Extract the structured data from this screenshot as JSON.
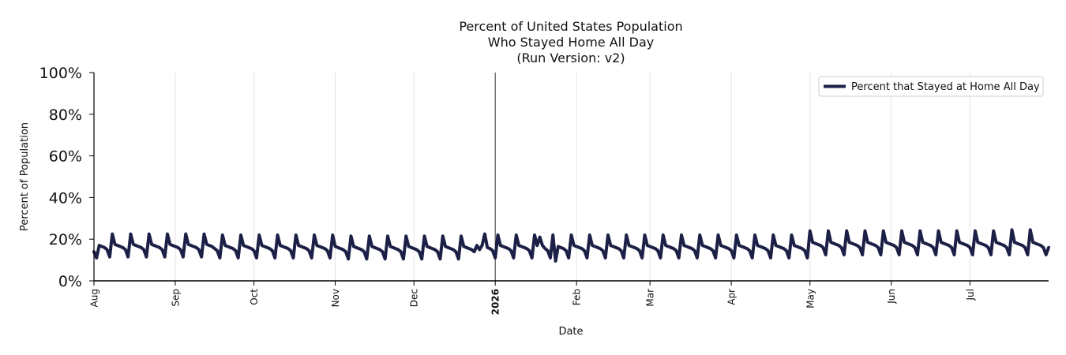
{
  "chart_data": {
    "type": "line",
    "title_lines": [
      "Percent of United States Population",
      "Who Stayed Home All Day",
      "(Run Version: v2)"
    ],
    "xlabel": "Date",
    "ylabel": "Percent of Population",
    "ylim": [
      0,
      100
    ],
    "yticks": [
      "0%",
      "20%",
      "40%",
      "60%",
      "80%",
      "100%"
    ],
    "xlim": [
      "2025-08-01",
      "2026-07-31"
    ],
    "xticks": [
      {
        "date": "2025-08-01",
        "label": "Aug",
        "bold": false
      },
      {
        "date": "2025-09-01",
        "label": "Sep",
        "bold": false
      },
      {
        "date": "2025-10-01",
        "label": "Oct",
        "bold": false
      },
      {
        "date": "2025-11-01",
        "label": "Nov",
        "bold": false
      },
      {
        "date": "2025-12-01",
        "label": "Dec",
        "bold": false
      },
      {
        "date": "2026-01-01",
        "label": "2026",
        "bold": true
      },
      {
        "date": "2026-02-01",
        "label": "Feb",
        "bold": false
      },
      {
        "date": "2026-03-01",
        "label": "Mar",
        "bold": false
      },
      {
        "date": "2026-04-01",
        "label": "Apr",
        "bold": false
      },
      {
        "date": "2026-05-01",
        "label": "May",
        "bold": false
      },
      {
        "date": "2026-06-01",
        "label": "Jun",
        "bold": false
      },
      {
        "date": "2026-07-01",
        "label": "Jul",
        "bold": false
      }
    ],
    "year_marker": "2026-01-01",
    "grid": "vertical",
    "legend_position": "upper-right",
    "series": [
      {
        "name": "Percent that Stayed at Home All Day",
        "color": "#1c2046",
        "weekly_pattern": {
          "first_date": "2025-08-01",
          "weekday_values": [
            22,
            17,
            16.5,
            16,
            15.5,
            14.5,
            11
          ]
        },
        "points": [
          {
            "x": "2025-08-01",
            "y": 14
          },
          {
            "x": "2025-08-02",
            "y": 11
          },
          {
            "x": "2025-12-25",
            "y": 17
          },
          {
            "x": "2025-12-26",
            "y": 15
          },
          {
            "x": "2025-12-27",
            "y": 17
          },
          {
            "x": "2025-12-28",
            "y": 22.5
          },
          {
            "x": "2026-01-18",
            "y": 21
          },
          {
            "x": "2026-01-19",
            "y": 17
          },
          {
            "x": "2026-01-24",
            "y": 9.5
          },
          {
            "x": "2026-05-01",
            "y": 24
          },
          {
            "x": "2026-05-08",
            "y": 24
          },
          {
            "x": "2026-05-15",
            "y": 24
          },
          {
            "x": "2026-05-22",
            "y": 24
          },
          {
            "x": "2026-05-29",
            "y": 24
          },
          {
            "x": "2026-06-05",
            "y": 24
          },
          {
            "x": "2026-06-12",
            "y": 24
          },
          {
            "x": "2026-06-19",
            "y": 24
          },
          {
            "x": "2026-06-26",
            "y": 24
          },
          {
            "x": "2026-07-03",
            "y": 24
          },
          {
            "x": "2026-07-10",
            "y": 24
          },
          {
            "x": "2026-07-17",
            "y": 24.5
          },
          {
            "x": "2026-07-24",
            "y": 24.5
          },
          {
            "x": "2026-07-31",
            "y": 16
          }
        ],
        "seasonal_adjustment": [
          {
            "from": "2025-08-01",
            "to": "2025-09-15",
            "delta": 0.5
          },
          {
            "from": "2025-11-01",
            "to": "2025-12-24",
            "delta": -0.5
          },
          {
            "from": "2026-05-01",
            "to": "2026-07-30",
            "delta": 1.5
          }
        ]
      }
    ]
  }
}
